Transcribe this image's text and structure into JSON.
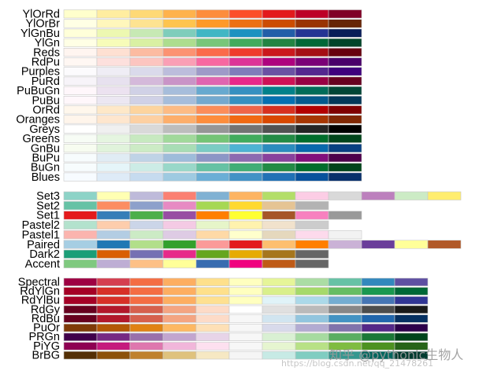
{
  "chart_data": [
    {
      "type": "table",
      "group": "sequential",
      "palettes": [
        {
          "name": "YlOrRd",
          "colors": [
            "#ffffcc",
            "#ffeda0",
            "#fed976",
            "#feb24c",
            "#fd8d3c",
            "#fc4e2a",
            "#e31a1c",
            "#bd0026",
            "#800026"
          ]
        },
        {
          "name": "YlOrBr",
          "colors": [
            "#ffffe5",
            "#fff7bc",
            "#fee391",
            "#fec44f",
            "#fe9929",
            "#ec7014",
            "#cc4c02",
            "#993404",
            "#662506"
          ]
        },
        {
          "name": "YlGnBu",
          "colors": [
            "#ffffd9",
            "#edf8b1",
            "#c7e9b4",
            "#7fcdbb",
            "#41b6c4",
            "#1d91c0",
            "#225ea8",
            "#253494",
            "#081d58"
          ]
        },
        {
          "name": "YlGn",
          "colors": [
            "#ffffe5",
            "#f7fcb9",
            "#d9f0a3",
            "#addd8e",
            "#78c679",
            "#41ab5d",
            "#238443",
            "#006837",
            "#004529"
          ]
        },
        {
          "name": "Reds",
          "colors": [
            "#fff5f0",
            "#fee0d2",
            "#fcbba1",
            "#fc9272",
            "#fb6a4a",
            "#ef3b2c",
            "#cb181d",
            "#a50f15",
            "#67000d"
          ]
        },
        {
          "name": "RdPu",
          "colors": [
            "#fff7f3",
            "#fde0dd",
            "#fcc5c0",
            "#fa9fb5",
            "#f768a1",
            "#dd3497",
            "#ae017e",
            "#7a0177",
            "#49006a"
          ]
        },
        {
          "name": "Purples",
          "colors": [
            "#fcfbfd",
            "#efedf5",
            "#dadaeb",
            "#bcbddc",
            "#9e9ac8",
            "#807dba",
            "#6a51a3",
            "#54278f",
            "#3f007d"
          ]
        },
        {
          "name": "PuRd",
          "colors": [
            "#f7f4f9",
            "#e7e1ef",
            "#d4b9da",
            "#c994c7",
            "#df65b0",
            "#e7298a",
            "#ce1256",
            "#980043",
            "#67001f"
          ]
        },
        {
          "name": "PuBuGn",
          "colors": [
            "#fff7fb",
            "#ece2f0",
            "#d0d1e6",
            "#a6bddb",
            "#67a9cf",
            "#3690c0",
            "#02818a",
            "#016c59",
            "#014636"
          ]
        },
        {
          "name": "PuBu",
          "colors": [
            "#fff7fb",
            "#ece7f2",
            "#d0d1e6",
            "#a6bddb",
            "#74a9cf",
            "#3690c0",
            "#0570b0",
            "#045a8d",
            "#023858"
          ]
        },
        {
          "name": "OrRd",
          "colors": [
            "#fff7ec",
            "#fee8c8",
            "#fdd49e",
            "#fdbb84",
            "#fc8d59",
            "#ef6548",
            "#d7301f",
            "#b30000",
            "#7f0000"
          ]
        },
        {
          "name": "Oranges",
          "colors": [
            "#fff5eb",
            "#fee6ce",
            "#fdd0a2",
            "#fdae6b",
            "#fd8d3c",
            "#f16913",
            "#d94801",
            "#a63603",
            "#7f2704"
          ]
        },
        {
          "name": "Greys",
          "colors": [
            "#ffffff",
            "#f0f0f0",
            "#d9d9d9",
            "#bdbdbd",
            "#969696",
            "#737373",
            "#525252",
            "#252525",
            "#000000"
          ]
        },
        {
          "name": "Greens",
          "colors": [
            "#f7fcf5",
            "#e5f5e0",
            "#c7e9c0",
            "#a1d99b",
            "#74c476",
            "#41ab5d",
            "#238b45",
            "#006d2c",
            "#00441b"
          ]
        },
        {
          "name": "GnBu",
          "colors": [
            "#f7fcf0",
            "#e0f3db",
            "#ccebc5",
            "#a8ddb5",
            "#7bccc4",
            "#4eb3d3",
            "#2b8cbe",
            "#0868ac",
            "#084081"
          ]
        },
        {
          "name": "BuPu",
          "colors": [
            "#f7fcfd",
            "#e0ecf4",
            "#bfd3e6",
            "#9ebcda",
            "#8c96c6",
            "#8c6bb1",
            "#88419d",
            "#810f7c",
            "#4d004b"
          ]
        },
        {
          "name": "BuGn",
          "colors": [
            "#f7fcfd",
            "#e5f5f9",
            "#ccece6",
            "#99d8c9",
            "#66c2a4",
            "#41ae76",
            "#238b45",
            "#006d2c",
            "#00441b"
          ]
        },
        {
          "name": "Blues",
          "colors": [
            "#f7fbff",
            "#deebf7",
            "#c6dbef",
            "#9ecae1",
            "#6baed6",
            "#4292c6",
            "#2171b5",
            "#08519c",
            "#08306b"
          ]
        }
      ]
    },
    {
      "type": "table",
      "group": "qualitative",
      "palettes": [
        {
          "name": "Set3",
          "colors": [
            "#8dd3c7",
            "#ffffb3",
            "#bebada",
            "#fb8072",
            "#80b1d3",
            "#fdb462",
            "#b3de69",
            "#fccde5",
            "#d9d9d9",
            "#bc80bd",
            "#ccebc5",
            "#ffed6f"
          ]
        },
        {
          "name": "Set2",
          "colors": [
            "#66c2a5",
            "#fc8d62",
            "#8da0cb",
            "#e78ac3",
            "#a6d854",
            "#ffd92f",
            "#e5c494",
            "#b3b3b3"
          ]
        },
        {
          "name": "Set1",
          "colors": [
            "#e41a1c",
            "#377eb8",
            "#4daf4a",
            "#984ea3",
            "#ff7f00",
            "#ffff33",
            "#a65628",
            "#f781bf",
            "#999999"
          ]
        },
        {
          "name": "Pastel2",
          "colors": [
            "#b3e2cd",
            "#fdcdac",
            "#cbd5e8",
            "#f4cae4",
            "#e6f5c9",
            "#fff2ae",
            "#f1e2cc",
            "#cccccc"
          ]
        },
        {
          "name": "Pastel1",
          "colors": [
            "#fbb4ae",
            "#b3cde3",
            "#ccebc5",
            "#decbe4",
            "#fed9a6",
            "#ffffcc",
            "#e5d8bd",
            "#fddaec",
            "#f2f2f2"
          ]
        },
        {
          "name": "Paired",
          "colors": [
            "#a6cee3",
            "#1f78b4",
            "#b2df8a",
            "#33a02c",
            "#fb9a99",
            "#e31a1c",
            "#fdbf6f",
            "#ff7f00",
            "#cab2d6",
            "#6a3d9a",
            "#ffff99",
            "#b15928"
          ]
        },
        {
          "name": "Dark2",
          "colors": [
            "#1b9e77",
            "#d95f02",
            "#7570b3",
            "#e7298a",
            "#66a61e",
            "#e6ab02",
            "#a6761d",
            "#666666"
          ]
        },
        {
          "name": "Accent",
          "colors": [
            "#7fc97f",
            "#beaed4",
            "#fdc086",
            "#ffff99",
            "#386cb0",
            "#f0027f",
            "#bf5b17",
            "#666666"
          ]
        }
      ]
    },
    {
      "type": "table",
      "group": "diverging",
      "palettes": [
        {
          "name": "Spectral",
          "colors": [
            "#9e0142",
            "#d53e4f",
            "#f46d43",
            "#fdae61",
            "#fee08b",
            "#ffffbf",
            "#e6f598",
            "#abdda4",
            "#66c2a5",
            "#3288bd",
            "#5e4fa2"
          ]
        },
        {
          "name": "RdYlGn",
          "colors": [
            "#a50026",
            "#d73027",
            "#f46d43",
            "#fdae61",
            "#fee08b",
            "#ffffbf",
            "#d9ef8b",
            "#a6d96a",
            "#66bd63",
            "#1a9850",
            "#006837"
          ]
        },
        {
          "name": "RdYlBu",
          "colors": [
            "#a50026",
            "#d73027",
            "#f46d43",
            "#fdae61",
            "#fee090",
            "#ffffbf",
            "#e0f3f8",
            "#abd9e9",
            "#74add1",
            "#4575b4",
            "#313695"
          ]
        },
        {
          "name": "RdGy",
          "colors": [
            "#67001f",
            "#b2182b",
            "#d6604d",
            "#f4a582",
            "#fddbc7",
            "#ffffff",
            "#e0e0e0",
            "#bababa",
            "#878787",
            "#4d4d4d",
            "#1a1a1a"
          ]
        },
        {
          "name": "RdBu",
          "colors": [
            "#67001f",
            "#b2182b",
            "#d6604d",
            "#f4a582",
            "#fddbc7",
            "#f7f7f7",
            "#d1e5f0",
            "#92c5de",
            "#4393c3",
            "#2166ac",
            "#053061"
          ]
        },
        {
          "name": "PuOr",
          "colors": [
            "#7f3b08",
            "#b35806",
            "#e08214",
            "#fdb863",
            "#fee0b6",
            "#f7f7f7",
            "#d8daeb",
            "#b2abd2",
            "#8073ac",
            "#542788",
            "#2d004b"
          ]
        },
        {
          "name": "PRGn",
          "colors": [
            "#40004b",
            "#762a83",
            "#9970ab",
            "#c2a5cf",
            "#e7d4e8",
            "#f7f7f7",
            "#d9f0d3",
            "#a6dba0",
            "#5aae61",
            "#1b7837",
            "#00441b"
          ]
        },
        {
          "name": "PiYG",
          "colors": [
            "#8e0152",
            "#c51b7d",
            "#de77ae",
            "#f1b6da",
            "#fde0ef",
            "#f7f7f7",
            "#e6f5d0",
            "#b8e186",
            "#7fbc41",
            "#4d9221",
            "#276419"
          ]
        },
        {
          "name": "BrBG",
          "colors": [
            "#543005",
            "#8c510a",
            "#bf812d",
            "#dfc27d",
            "#f6e8c3",
            "#f5f5f5",
            "#c7eae5",
            "#80cdc1",
            "#35978f",
            "#01665e",
            "#003c30"
          ]
        }
      ]
    }
  ],
  "watermark": {
    "main": "知乎 @pythonic生物人",
    "url": "https://blog.csdn.net/qq_21478261"
  }
}
